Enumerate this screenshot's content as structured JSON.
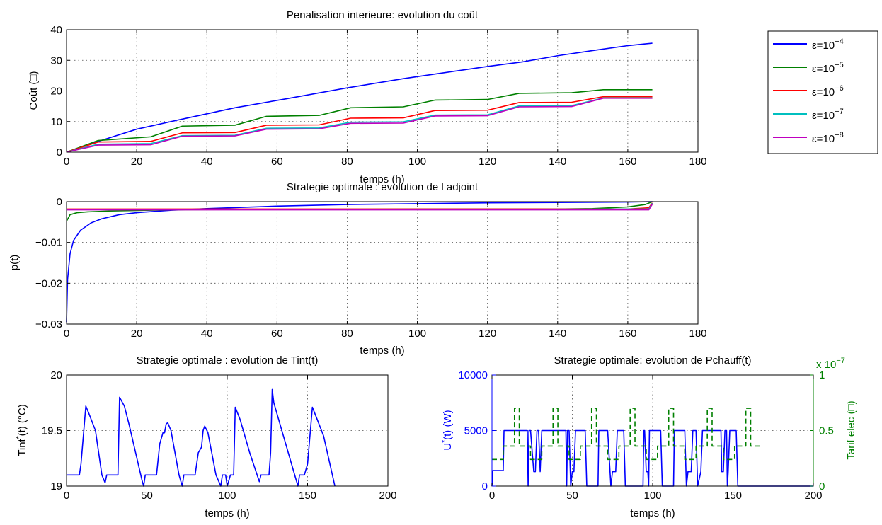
{
  "chart_data": [
    {
      "type": "line",
      "title": "Penalisation interieure: evolution du coût",
      "xlabel": "temps (h)",
      "ylabel": "Coût (□)",
      "xlim": [
        0,
        180
      ],
      "ylim": [
        0,
        40
      ],
      "xticks": [
        0,
        20,
        40,
        60,
        80,
        100,
        120,
        140,
        160,
        180
      ],
      "yticks": [
        0,
        10,
        20,
        30,
        40
      ],
      "grid": true,
      "legend_position": "top-right, outside",
      "series": [
        {
          "name": "ε=10^-4",
          "label_base": "ε=10",
          "label_exp": "−4",
          "color": "#0000ff",
          "x": [
            0,
            9,
            20,
            33,
            48,
            63,
            80,
            96,
            105,
            120,
            130,
            140,
            150,
            160,
            167
          ],
          "y": [
            0,
            3.5,
            7.5,
            10.8,
            14.5,
            17.5,
            21,
            24,
            25.5,
            28,
            29.5,
            31.5,
            33.2,
            34.8,
            35.6
          ]
        },
        {
          "name": "ε=10^-5",
          "label_base": "ε=10",
          "label_exp": "−5",
          "color": "#008000",
          "x": [
            0,
            9,
            24,
            33,
            48,
            57,
            72,
            81,
            96,
            105,
            120,
            129,
            144,
            153,
            167
          ],
          "y": [
            0,
            3.8,
            5,
            8.5,
            8.8,
            11.7,
            12,
            14.5,
            14.8,
            17,
            17.2,
            19.2,
            19.4,
            20.4,
            20.4
          ]
        },
        {
          "name": "ε=10^-6",
          "label_base": "ε=10",
          "label_exp": "−6",
          "color": "#ff0000",
          "x": [
            0,
            9,
            24,
            33,
            48,
            57,
            72,
            81,
            96,
            105,
            120,
            129,
            144,
            153,
            167
          ],
          "y": [
            0,
            3.3,
            3.5,
            6.3,
            6.4,
            8.8,
            8.9,
            11.1,
            11.2,
            13.6,
            13.7,
            16.2,
            16.3,
            18.1,
            18.1
          ]
        },
        {
          "name": "ε=10^-7",
          "label_base": "ε=10",
          "label_exp": "−7",
          "color": "#00bfbf",
          "x": [
            0,
            9,
            24,
            33,
            48,
            57,
            72,
            81,
            96,
            105,
            120,
            129,
            144,
            153,
            167
          ],
          "y": [
            0,
            2.6,
            2.8,
            5.4,
            5.5,
            7.8,
            7.9,
            9.8,
            9.9,
            12.1,
            12.2,
            15.1,
            15.2,
            17.7,
            17.7
          ]
        },
        {
          "name": "ε=10^-8",
          "label_base": "ε=10",
          "label_exp": "−8",
          "color": "#bf00bf",
          "x": [
            0,
            9,
            24,
            33,
            48,
            57,
            72,
            81,
            96,
            105,
            120,
            129,
            144,
            153,
            167
          ],
          "y": [
            0,
            2.3,
            2.4,
            5.2,
            5.3,
            7.5,
            7.6,
            9.4,
            9.5,
            11.8,
            11.9,
            14.8,
            14.9,
            17.6,
            17.6
          ]
        }
      ]
    },
    {
      "type": "line",
      "title": "Strategie optimale : evolution de l adjoint",
      "xlabel": "temps (h)",
      "ylabel": "p(t)",
      "xlim": [
        0,
        180
      ],
      "ylim": [
        -0.03,
        0
      ],
      "xticks": [
        0,
        20,
        40,
        60,
        80,
        100,
        120,
        140,
        160,
        180
      ],
      "yticks": [
        -0.03,
        -0.02,
        -0.01,
        0
      ],
      "ytick_labels": [
        "−0.03",
        "−0.02",
        "−0.01",
        "0"
      ],
      "grid": true,
      "series": [
        {
          "color": "#0000ff",
          "x": [
            0,
            0.3,
            1,
            2,
            4,
            7,
            10,
            15,
            20,
            30,
            40,
            60,
            80,
            100,
            120,
            140,
            160,
            167
          ],
          "y": [
            -0.0295,
            -0.019,
            -0.0128,
            -0.0095,
            -0.007,
            -0.0052,
            -0.0042,
            -0.0032,
            -0.0027,
            -0.0021,
            -0.0017,
            -0.0011,
            -0.0007,
            -0.0005,
            -0.0003,
            -0.0002,
            -0.0001,
            0
          ]
        },
        {
          "color": "#008000",
          "x": [
            0,
            1,
            3,
            6,
            12,
            30,
            60,
            100,
            140,
            150,
            160,
            165,
            167
          ],
          "y": [
            -0.0048,
            -0.0032,
            -0.0027,
            -0.0025,
            -0.0023,
            -0.002,
            -0.0019,
            -0.0018,
            -0.0018,
            -0.0017,
            -0.0013,
            -0.0007,
            0
          ]
        },
        {
          "color": "#ff0000",
          "x": [
            0,
            40,
            100,
            160,
            166,
            167
          ],
          "y": [
            -0.0018,
            -0.0018,
            -0.0018,
            -0.0018,
            -0.0015,
            -0.0003
          ]
        },
        {
          "color": "#00bfbf",
          "x": [
            0,
            60,
            120,
            166,
            167
          ],
          "y": [
            -0.0019,
            -0.0019,
            -0.0019,
            -0.0018,
            -0.0004
          ]
        },
        {
          "color": "#bf00bf",
          "x": [
            0,
            60,
            120,
            166,
            167
          ],
          "y": [
            -0.002,
            -0.002,
            -0.002,
            -0.002,
            -0.0006
          ]
        }
      ]
    },
    {
      "type": "line",
      "title": "Strategie optimale : evolution de Tint(t)",
      "xlabel": "temps (h)",
      "ylabel": "Tint*(t) (°C)",
      "ylabel_base": "Tint",
      "ylabel_sup": "*",
      "ylabel_rest": "(t) (°C)",
      "xlim": [
        0,
        200
      ],
      "ylim": [
        19,
        20
      ],
      "xticks": [
        0,
        50,
        100,
        150,
        200
      ],
      "yticks": [
        19,
        19.5,
        20
      ],
      "grid": true,
      "series": [
        {
          "color": "#0000ff",
          "x": [
            0,
            8,
            9,
            12,
            14,
            18,
            22,
            24,
            25,
            28,
            32,
            33,
            36,
            39,
            43,
            47,
            48,
            49,
            52,
            56,
            58,
            60,
            61,
            62,
            63,
            65,
            70,
            72,
            73,
            76,
            80,
            82,
            84,
            85,
            86,
            88,
            93,
            96,
            97,
            99,
            100,
            102,
            104,
            105,
            108,
            114,
            120,
            121,
            124,
            126,
            127,
            128,
            129,
            132,
            140,
            144,
            145,
            148,
            150,
            153,
            156,
            160,
            167
          ],
          "y": [
            19.1,
            19.1,
            19.2,
            19.72,
            19.65,
            19.5,
            19.1,
            19.03,
            19.1,
            19.1,
            19.1,
            19.8,
            19.72,
            19.55,
            19.3,
            19.05,
            19.0,
            19.1,
            19.1,
            19.1,
            19.38,
            19.48,
            19.48,
            19.56,
            19.57,
            19.5,
            19.1,
            19.0,
            19.1,
            19.1,
            19.1,
            19.3,
            19.35,
            19.5,
            19.54,
            19.48,
            19.1,
            19.0,
            19.1,
            19.1,
            19.0,
            19.1,
            19.1,
            19.71,
            19.6,
            19.3,
            19.04,
            19.1,
            19.1,
            19.1,
            19.3,
            19.87,
            19.75,
            19.6,
            19.2,
            19.0,
            19.1,
            19.1,
            19.2,
            19.71,
            19.6,
            19.45,
            19.0
          ]
        }
      ]
    },
    {
      "type": "line",
      "title": "Strategie optimale: evolution de Pchauff(t)",
      "xlabel": "temps (h)",
      "ylabel_left": "U*(t) (W)",
      "ylabel_left_base": "U",
      "ylabel_left_sup": "*",
      "ylabel_left_rest": "(t) (W)",
      "ylabel_right": "Tarif elec (□)",
      "right_exponent_base": "x 10",
      "right_exponent_sup": "−7",
      "xlim": [
        0,
        200
      ],
      "ylim_left": [
        0,
        10000
      ],
      "ylim_right": [
        0,
        1
      ],
      "xticks": [
        0,
        50,
        100,
        150,
        200
      ],
      "yticks_left": [
        0,
        5000,
        10000
      ],
      "yticks_right": [
        0,
        0.5,
        1
      ],
      "grid": true,
      "series": [
        {
          "axis": "left",
          "color": "#0000ff",
          "style": "solid",
          "x": [
            0,
            0.5,
            1,
            6,
            7,
            7.5,
            8,
            10,
            18,
            22,
            22.5,
            23,
            24,
            26,
            27,
            28,
            29,
            30,
            31,
            32,
            46,
            46.5,
            47,
            48,
            49,
            50,
            51,
            52,
            53,
            54,
            58,
            59,
            66,
            66.5,
            67,
            70,
            72,
            74,
            75,
            77,
            78,
            82,
            83,
            94,
            94.5,
            95,
            96,
            97,
            97.5,
            98,
            105,
            106,
            113,
            113.5,
            114,
            118,
            120,
            121,
            122,
            124,
            125,
            127,
            128,
            130,
            131,
            142,
            142.5,
            143,
            144,
            145,
            146,
            146.5,
            147,
            148,
            152,
            153,
            167,
            200
          ],
          "y": [
            0,
            1400,
            1400,
            1400,
            1400,
            5000,
            5000,
            5000,
            5000,
            5000,
            0,
            5000,
            5000,
            1300,
            1300,
            5000,
            5000,
            1300,
            5000,
            5000,
            5000,
            0,
            5000,
            5000,
            0,
            1300,
            1300,
            5000,
            5000,
            5000,
            5000,
            0,
            0,
            5000,
            5000,
            5000,
            5000,
            0,
            1300,
            1300,
            5000,
            5000,
            0,
            0,
            5000,
            5000,
            1300,
            1300,
            0,
            5000,
            5000,
            0,
            0,
            5000,
            5000,
            5000,
            5000,
            0,
            1300,
            1300,
            5000,
            5000,
            0,
            1300,
            5000,
            5000,
            5000,
            1300,
            1300,
            5000,
            5000,
            0,
            1300,
            5000,
            5000,
            0,
            0,
            0
          ]
        },
        {
          "axis": "right",
          "color": "#008000",
          "style": "dashed",
          "x": [
            0,
            7,
            7,
            14,
            14,
            17,
            17,
            24,
            24,
            31,
            31,
            38,
            38,
            41,
            41,
            48,
            48,
            55,
            55,
            62,
            62,
            65,
            65,
            72,
            72,
            79,
            79,
            86,
            86,
            89,
            89,
            96,
            96,
            103,
            103,
            110,
            110,
            113,
            113,
            120,
            120,
            127,
            127,
            134,
            134,
            137,
            137,
            144,
            144,
            151,
            151,
            158,
            158,
            161,
            161,
            168
          ],
          "y": [
            0.24,
            0.24,
            0.36,
            0.36,
            0.7,
            0.7,
            0.36,
            0.36,
            0.24,
            0.24,
            0.36,
            0.36,
            0.7,
            0.7,
            0.36,
            0.36,
            0.24,
            0.24,
            0.36,
            0.36,
            0.7,
            0.7,
            0.36,
            0.36,
            0.24,
            0.24,
            0.36,
            0.36,
            0.7,
            0.7,
            0.36,
            0.36,
            0.24,
            0.24,
            0.36,
            0.36,
            0.7,
            0.7,
            0.36,
            0.36,
            0.24,
            0.24,
            0.36,
            0.36,
            0.7,
            0.7,
            0.36,
            0.36,
            0.24,
            0.24,
            0.36,
            0.36,
            0.7,
            0.7,
            0.36,
            0.36
          ]
        }
      ]
    }
  ]
}
